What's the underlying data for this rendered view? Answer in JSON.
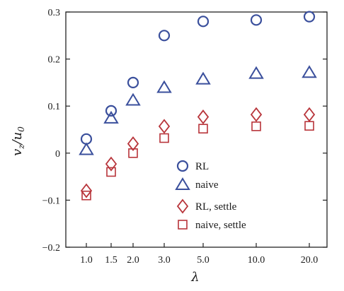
{
  "chart_data": {
    "type": "scatter",
    "title": "",
    "xlabel": "λ",
    "ylabel": "v_z/u_0",
    "ylabel_main": "v",
    "ylabel_sub1": "z",
    "ylabel_sep": "/",
    "ylabel_den": "u",
    "ylabel_sub2": "0",
    "categories": [
      "1.0",
      "1.5",
      "2.0",
      "3.0",
      "5.0",
      "10.0",
      "20.0"
    ],
    "ylim": [
      -0.2,
      0.3
    ],
    "yticks": [
      -0.2,
      -0.1,
      0,
      0.1,
      0.2,
      0.3
    ],
    "ytick_labels": [
      "−0.2",
      "−0.1",
      "0",
      "0.1",
      "0.2",
      "0.3"
    ],
    "grid": false,
    "legend_position": "lower-right",
    "series": [
      {
        "name": "RL",
        "marker": "circle",
        "color": "#3a4f9c",
        "values": [
          0.03,
          0.09,
          0.15,
          0.25,
          0.28,
          0.283,
          0.29
        ]
      },
      {
        "name": "naive",
        "marker": "triangle",
        "color": "#3a4f9c",
        "values": [
          0.008,
          0.075,
          0.113,
          0.14,
          0.158,
          0.17,
          0.172
        ]
      },
      {
        "name": "RL, settle",
        "marker": "diamond",
        "color": "#b8343a",
        "values": [
          -0.08,
          -0.023,
          0.02,
          0.057,
          0.077,
          0.082,
          0.082
        ]
      },
      {
        "name": "naive, settle",
        "marker": "square",
        "color": "#b8343a",
        "values": [
          -0.09,
          -0.04,
          0.0,
          0.032,
          0.052,
          0.057,
          0.058
        ]
      }
    ]
  }
}
